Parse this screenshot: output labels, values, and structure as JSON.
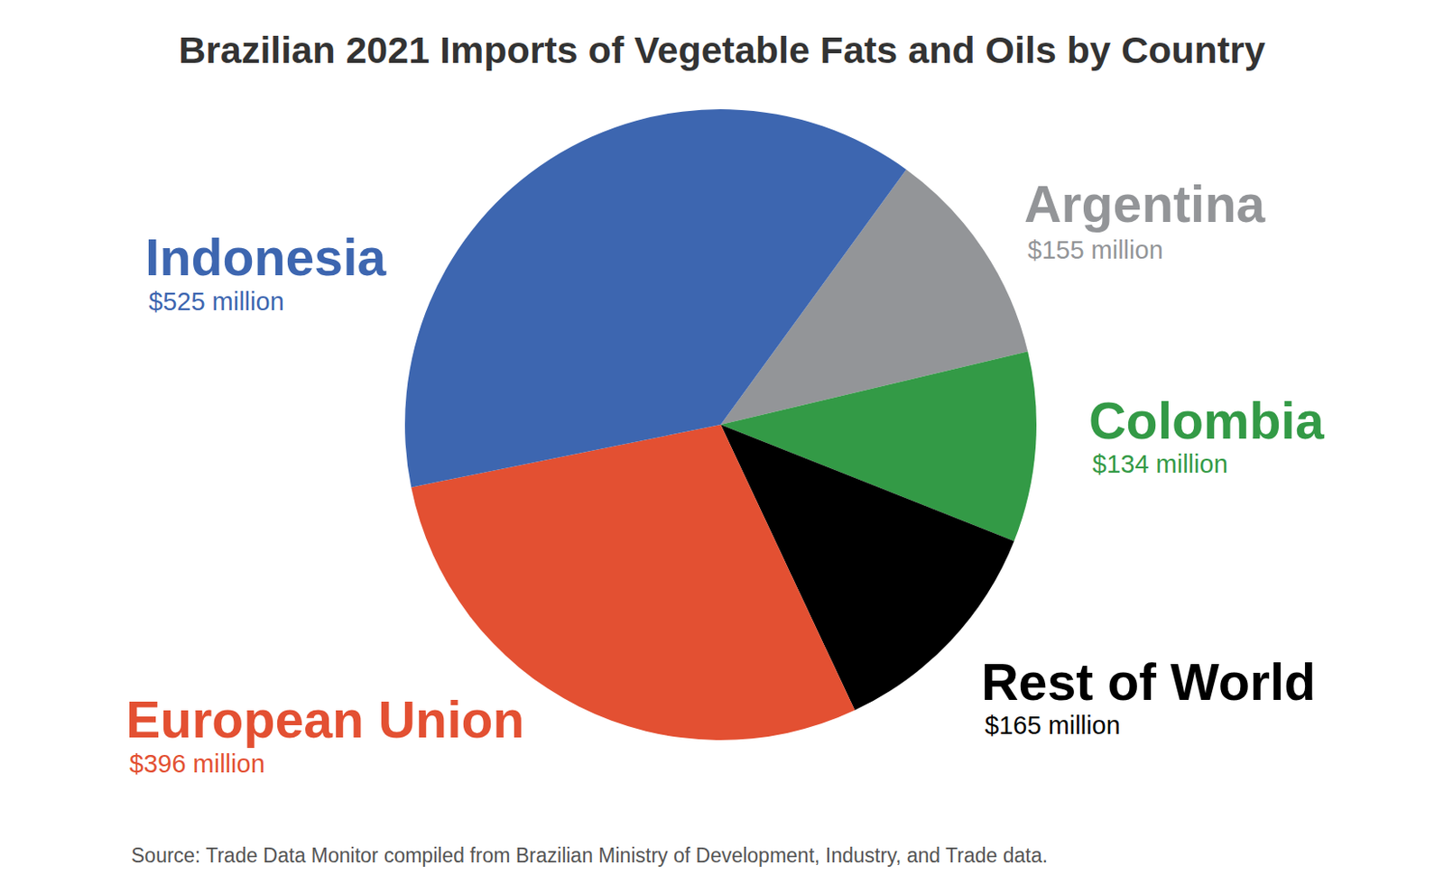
{
  "chart_data": {
    "type": "pie",
    "title": "Brazilian 2021 Imports of Vegetable Fats and Oils by Country",
    "categories": [
      "Argentina",
      "Colombia",
      "Rest of World",
      "European Union",
      "Indonesia"
    ],
    "values": [
      155,
      134,
      165,
      396,
      525
    ],
    "value_labels": [
      "$155 million",
      "$134 million",
      "$165 million",
      "$396 million",
      "$525 million"
    ],
    "colors": [
      "#939598",
      "#339a46",
      "#000000",
      "#e35032",
      "#3d66b0"
    ],
    "data_labels": true,
    "source": "Source: Trade Data Monitor compiled from Brazilian Ministry of Development, Industry, and Trade data."
  }
}
